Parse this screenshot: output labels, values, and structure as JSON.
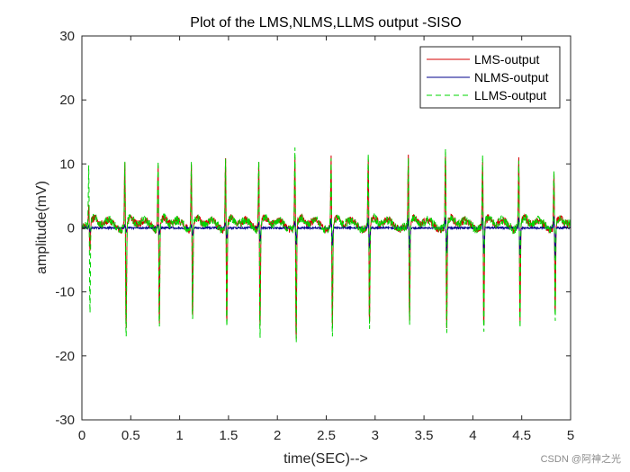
{
  "chart_data": {
    "type": "line",
    "title": "Plot of the LMS,NLMS,LLMS output -SISO",
    "xlabel": "time(SEC)-->",
    "ylabel": "amplitude(mV)",
    "xlim": [
      0,
      5
    ],
    "ylim": [
      -30,
      30
    ],
    "xticks": [
      0,
      0.5,
      1,
      1.5,
      2,
      2.5,
      3,
      3.5,
      4,
      4.5,
      5
    ],
    "xtick_labels": [
      "0",
      "0.5",
      "1",
      "1.5",
      "2",
      "2.5",
      "3",
      "3.5",
      "4",
      "4.5",
      "5"
    ],
    "yticks": [
      -30,
      -20,
      -10,
      0,
      10,
      20,
      30
    ],
    "ytick_labels": [
      "-30",
      "-20",
      "-10",
      "0",
      "10",
      "20",
      "30"
    ],
    "grid": false,
    "legend_position": "top-right",
    "series": [
      {
        "name": "LMS-output",
        "color": "#d40000",
        "dash": "solid",
        "beat_times": [
          0.07,
          0.44,
          0.78,
          1.12,
          1.47,
          1.81,
          2.18,
          2.55,
          2.93,
          3.34,
          3.72,
          4.1,
          4.47,
          4.83
        ],
        "beat_peaks": [
          3,
          10.5,
          10.5,
          10,
          11.5,
          10.5,
          11.5,
          11,
          11,
          11,
          12,
          11,
          11,
          9
        ],
        "beat_troughs": [
          -4,
          -17,
          -16,
          -15,
          -16,
          -17,
          -19,
          -17,
          -16,
          -16,
          -17,
          -17,
          -16,
          -15
        ],
        "baseline_offset": 1.0,
        "noise": 0.6
      },
      {
        "name": "NLMS-output",
        "color": "#00008b",
        "dash": "solid",
        "beat_times": [
          0.07,
          0.44,
          0.78,
          1.12,
          1.47,
          1.81,
          2.18,
          2.55,
          2.93,
          3.34,
          3.72,
          4.1,
          4.47,
          4.83
        ],
        "beat_peaks": [
          0.3,
          0.4,
          0.5,
          0.6,
          0.9,
          1.0,
          1.3,
          1.5,
          1.5,
          1.6,
          1.8,
          1.8,
          1.8,
          2.0
        ],
        "beat_troughs": [
          -0.5,
          -0.8,
          -1.0,
          -1.3,
          -1.8,
          -2.2,
          -2.6,
          -3.0,
          -3.3,
          -3.6,
          -4.0,
          -4.3,
          -4.6,
          -5.0
        ],
        "baseline_offset": 0.0,
        "noise": 0.15
      },
      {
        "name": "LLMS-output",
        "color": "#00d400",
        "dash": "dashed",
        "beat_times": [
          0.07,
          0.44,
          0.78,
          1.12,
          1.47,
          1.81,
          2.18,
          2.55,
          2.93,
          3.34,
          3.72,
          4.1,
          4.47,
          4.83
        ],
        "beat_peaks": [
          9,
          11,
          11,
          10.5,
          11.5,
          11,
          12.5,
          11,
          11.5,
          11,
          12.5,
          11.5,
          11,
          9.5
        ],
        "beat_troughs": [
          -14,
          -18.5,
          -17,
          -16,
          -17,
          -18,
          -19.5,
          -18,
          -17,
          -16.5,
          -17.5,
          -18,
          -17,
          -16
        ],
        "baseline_offset": 1.0,
        "noise": 0.7
      }
    ]
  },
  "watermark": "CSDN @阿神之光"
}
